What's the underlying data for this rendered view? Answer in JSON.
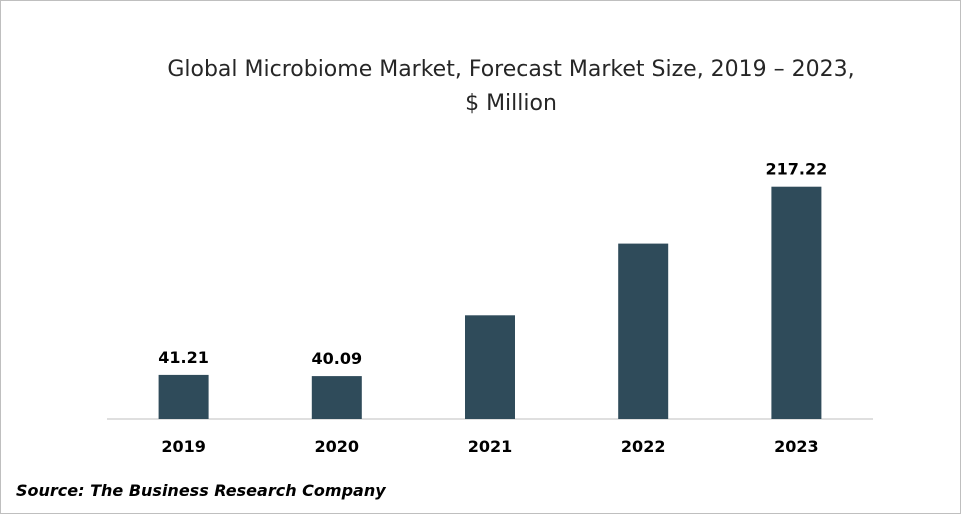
{
  "chart_data": {
    "type": "bar",
    "title": "Global Microbiome Market, Forecast Market Size, 2019 – 2023,",
    "subtitle": "$ Million",
    "categories": [
      "2019",
      "2020",
      "2021",
      "2022",
      "2023"
    ],
    "values": [
      41.21,
      40.09,
      97.0,
      164.0,
      217.22
    ],
    "data_labels": [
      "41.21",
      "40.09",
      "",
      "",
      "217.22"
    ],
    "xlabel": "",
    "ylabel": "",
    "ylim": [
      0,
      230
    ],
    "grid": false,
    "legend": "none",
    "bar_color": "#2f4b5a",
    "axis_color": "#bfbfbf"
  },
  "source": "Source: The Business Research Company"
}
